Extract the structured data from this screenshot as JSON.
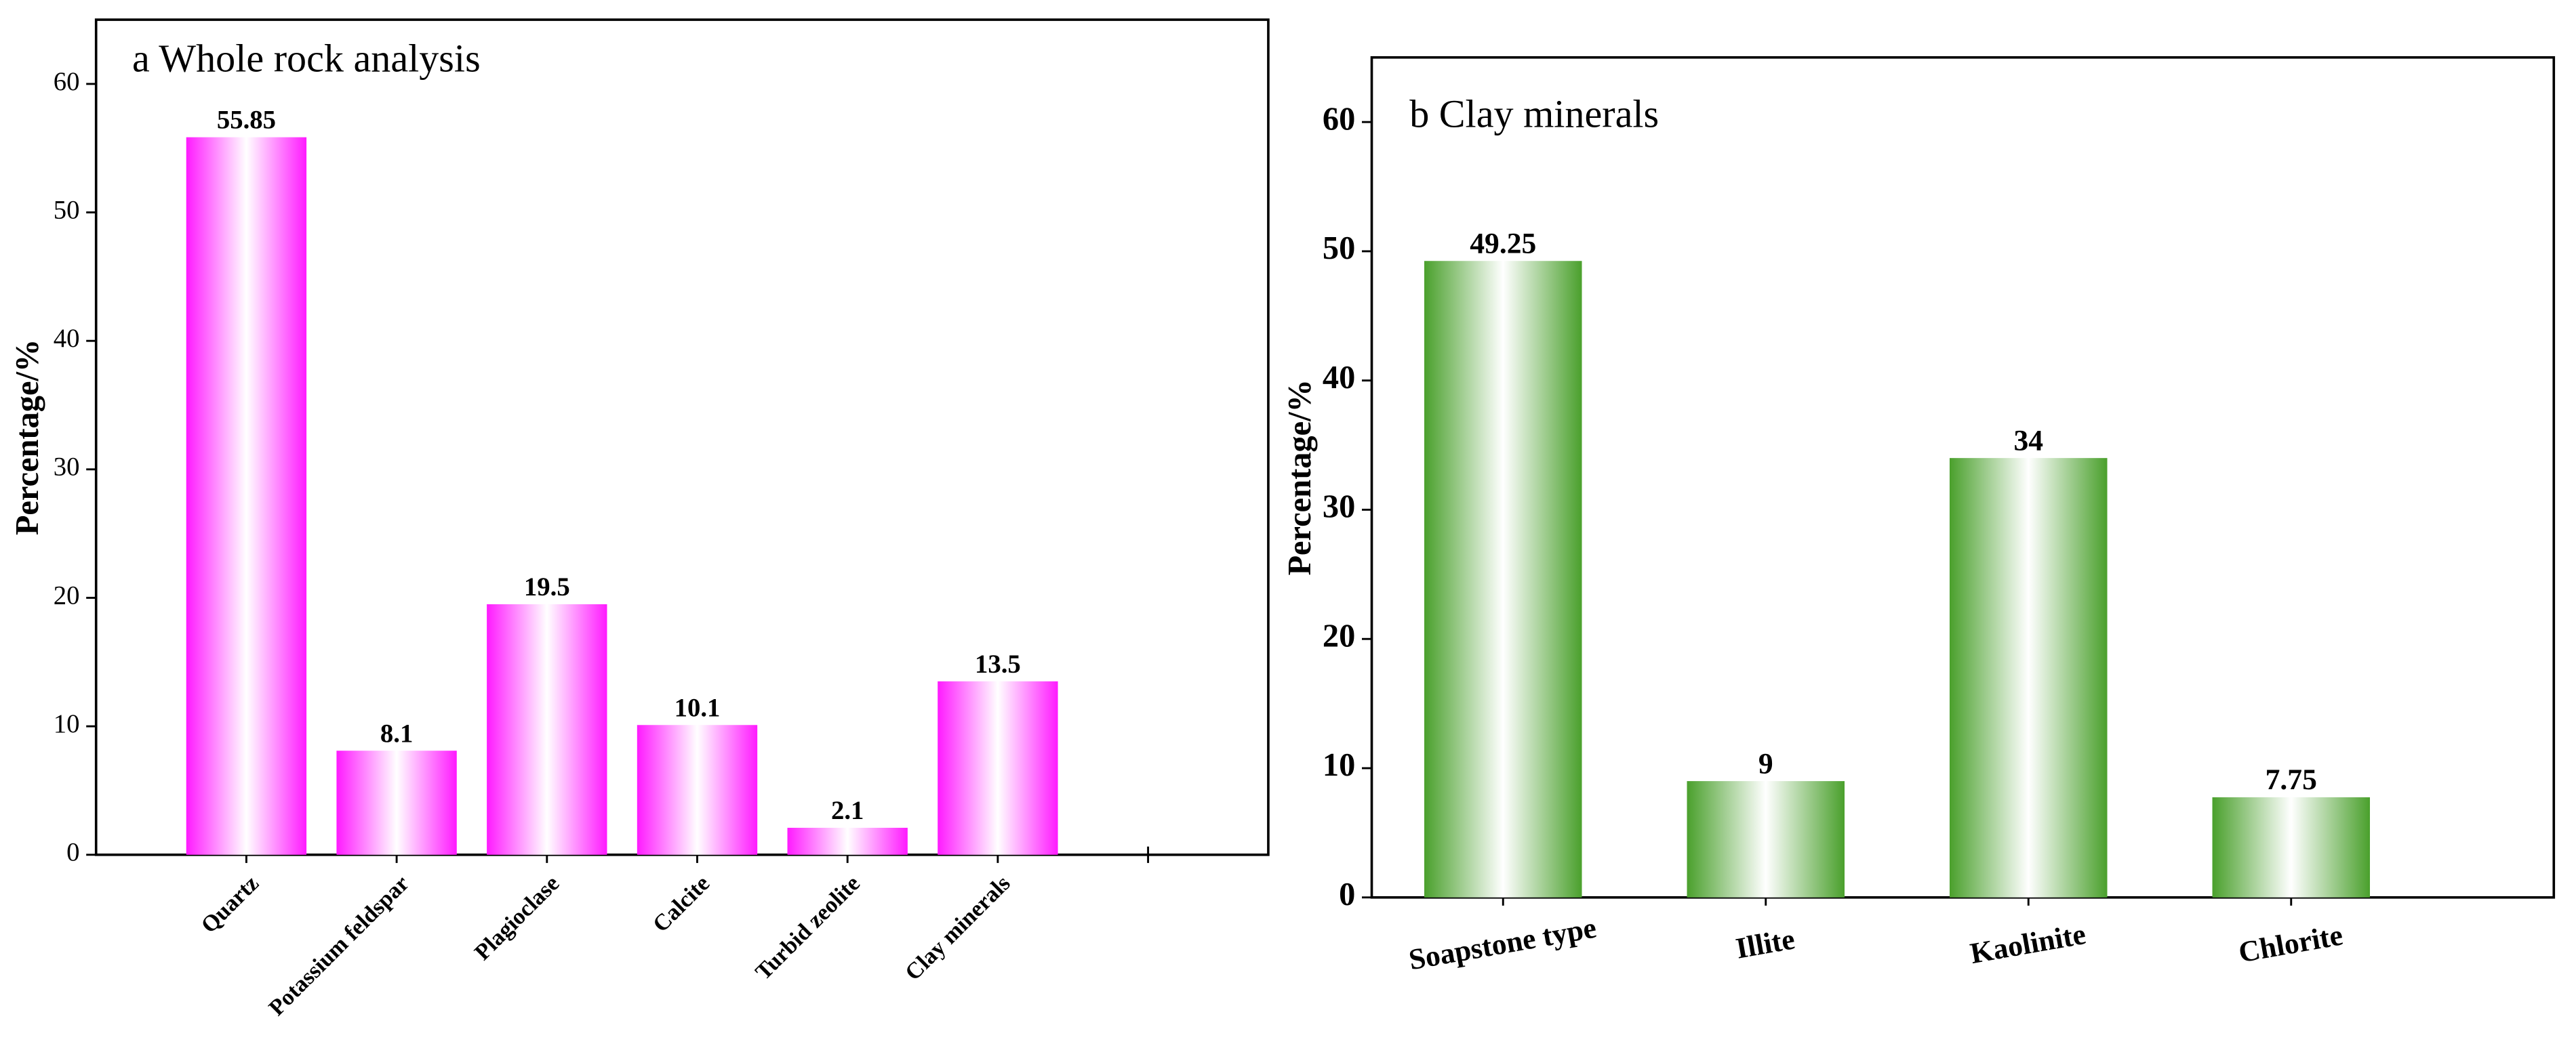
{
  "chart_data": [
    {
      "type": "bar",
      "title": "a  Whole rock analysis",
      "y_label": "Percentage/%",
      "categories": [
        "Quartz",
        "Potassium feldspar",
        "Plagioclase",
        "Calcite",
        "Turbid zeolite",
        "Clay minerals",
        null
      ],
      "values": [
        55.85,
        8.1,
        19.5,
        10.1,
        2.1,
        13.5,
        null
      ],
      "color": "#ff1aff",
      "ylim": [
        0,
        65
      ],
      "yticks": [
        0,
        10,
        20,
        30,
        40,
        50,
        60
      ],
      "grid": false
    },
    {
      "type": "bar",
      "title": "b Clay minerals",
      "y_label": "Percentage/%",
      "categories": [
        "Soapstone type",
        "Illite",
        "Kaolinite",
        "Chlorite"
      ],
      "values": [
        49.25,
        9,
        34,
        7.75
      ],
      "color": "#4aa02c",
      "ylim": [
        0,
        65
      ],
      "yticks": [
        0,
        10,
        20,
        30,
        40,
        50,
        60
      ],
      "grid": false
    }
  ]
}
